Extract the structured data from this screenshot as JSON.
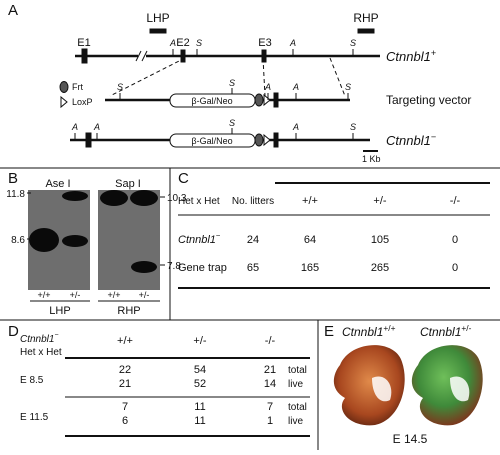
{
  "panel_a": {
    "label": "A",
    "probes": [
      "LHP",
      "RHP"
    ],
    "exons": [
      "E1",
      "E2",
      "E3"
    ],
    "sites": {
      "ase": "A",
      "sap": "S"
    },
    "wild_type": {
      "gene": "Ctnnbl1",
      "sup": "+"
    },
    "legend": [
      "Frt",
      "LoxP"
    ],
    "targeting_vector": "Targeting vector",
    "cassette": "β-Gal/Neo",
    "mutant": {
      "gene": "Ctnnbl1",
      "sup": "−"
    },
    "scale": "1 Kb"
  },
  "panel_b": {
    "label": "B",
    "enzymes": [
      "Ase I",
      "Sap I"
    ],
    "markers_left": [
      11.8,
      8.6
    ],
    "markers_right": [
      10.3,
      7.8
    ],
    "genotypes": [
      "+/+",
      "+/-"
    ],
    "probes": [
      "LHP",
      "RHP"
    ]
  },
  "panel_c": {
    "label": "C",
    "cross": "Het x Het",
    "litters_header": "No. litters",
    "columns": [
      "+/+",
      "+/-",
      "-/-"
    ],
    "rows": [
      {
        "gene": "Ctnnbl1",
        "sup": "−",
        "litters": 24,
        "counts": [
          64,
          105,
          0
        ]
      },
      {
        "name": "Gene trap",
        "litters": 65,
        "counts": [
          165,
          265,
          0
        ]
      }
    ]
  },
  "panel_d": {
    "label": "D",
    "gene": "Ctnnbl1",
    "sup": "−",
    "cross": "Het x Het",
    "columns": [
      "+/+",
      "+/-",
      "-/-"
    ],
    "stages": [
      {
        "stage": "E 8.5",
        "rows": [
          {
            "counts": [
              22,
              54,
              21
            ],
            "kind": "total"
          },
          {
            "counts": [
              21,
              52,
              14
            ],
            "kind": "live"
          }
        ]
      },
      {
        "stage": "E 11.5",
        "rows": [
          {
            "counts": [
              7,
              11,
              7
            ],
            "kind": "total"
          },
          {
            "counts": [
              6,
              11,
              1
            ],
            "kind": "live"
          }
        ]
      }
    ]
  },
  "panel_e": {
    "label": "E",
    "embryos": [
      {
        "gene": "Ctnnbl1",
        "sup": "+/+"
      },
      {
        "gene": "Ctnnbl1",
        "sup": "+/-"
      }
    ],
    "stage": "E 14.5"
  }
}
